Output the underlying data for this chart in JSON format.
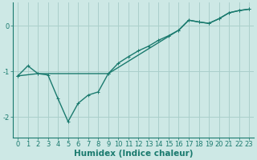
{
  "xlabel": "Humidex (Indice chaleur)",
  "background_color": "#cde8e5",
  "grid_color": "#aacfcb",
  "line_color": "#1a7a6e",
  "xlim": [
    -0.5,
    23.5
  ],
  "ylim": [
    -2.45,
    0.5
  ],
  "yticks": [
    0,
    -1,
    -2
  ],
  "xticks": [
    0,
    1,
    2,
    3,
    4,
    5,
    6,
    7,
    8,
    9,
    10,
    11,
    12,
    13,
    14,
    15,
    16,
    17,
    18,
    19,
    20,
    21,
    22,
    23
  ],
  "wavy_x": [
    0,
    1,
    2,
    3,
    4,
    5,
    6,
    7,
    8,
    9,
    10,
    11,
    12,
    13,
    14,
    15,
    16,
    17,
    18,
    19,
    20,
    21,
    22,
    23
  ],
  "wavy_y": [
    -1.1,
    -0.88,
    -1.05,
    -1.08,
    -1.6,
    -2.1,
    -1.7,
    -1.52,
    -1.45,
    -1.05,
    -0.82,
    -0.68,
    -0.55,
    -0.45,
    -0.32,
    -0.22,
    -0.1,
    0.12,
    0.08,
    0.05,
    0.15,
    0.28,
    0.33,
    0.36
  ],
  "straight_x": [
    0,
    2,
    9,
    16,
    17,
    18,
    19,
    20,
    21,
    22,
    23
  ],
  "straight_y": [
    -1.1,
    -1.05,
    -1.05,
    -0.1,
    0.12,
    0.08,
    0.05,
    0.15,
    0.28,
    0.33,
    0.36
  ],
  "line_width": 1.0,
  "marker_size": 2.5,
  "tick_fontsize": 6,
  "label_fontsize": 7.5
}
